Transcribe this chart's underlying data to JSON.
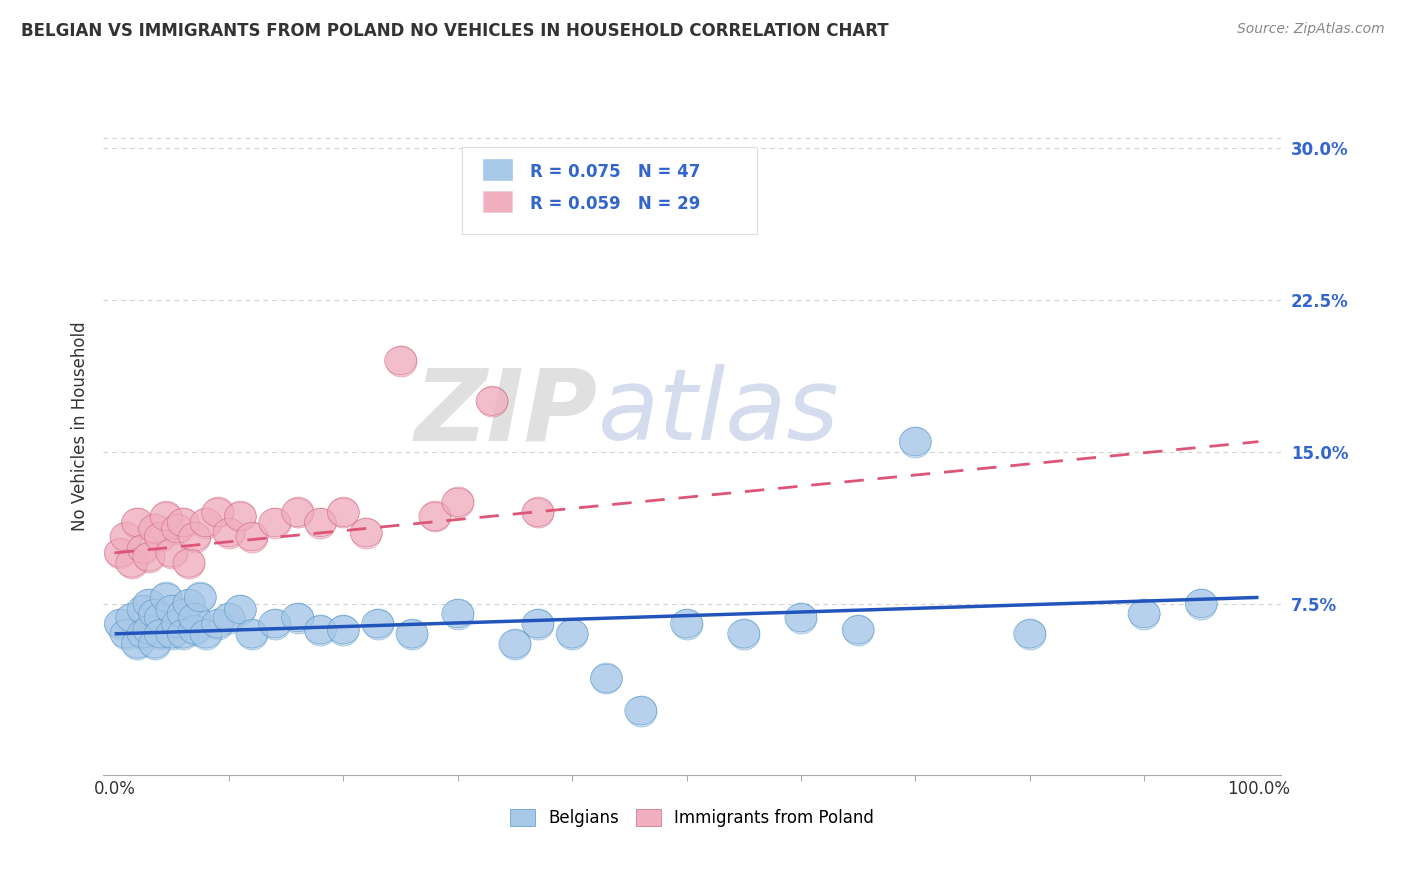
{
  "title": "BELGIAN VS IMMIGRANTS FROM POLAND NO VEHICLES IN HOUSEHOLD CORRELATION CHART",
  "source": "Source: ZipAtlas.com",
  "ylabel": "No Vehicles in Household",
  "watermark_zip": "ZIP",
  "watermark_atlas": "atlas",
  "xlim": [
    -0.01,
    1.02
  ],
  "ylim": [
    -0.01,
    0.335
  ],
  "ytick_right_labels": [
    "30.0%",
    "22.5%",
    "15.0%",
    "7.5%"
  ],
  "ytick_right_values": [
    0.3,
    0.225,
    0.15,
    0.075
  ],
  "color_blue": "#a8c8e8",
  "color_pink": "#f0b0c0",
  "color_blue_line": "#2255bb",
  "color_pink_line": "#dd5577",
  "color_legend_text": "#3366cc",
  "background_color": "#ffffff",
  "grid_color": "#cccccc",
  "bel_trend_x0": 0.0,
  "bel_trend_x1": 1.0,
  "bel_trend_y0": 0.06,
  "bel_trend_y1": 0.078,
  "pol_trend_x0": 0.0,
  "pol_trend_x1": 1.0,
  "pol_trend_y0": 0.1,
  "pol_trend_y1": 0.155,
  "belgians_x": [
    0.005,
    0.01,
    0.015,
    0.02,
    0.025,
    0.025,
    0.03,
    0.03,
    0.035,
    0.035,
    0.04,
    0.04,
    0.045,
    0.05,
    0.05,
    0.055,
    0.06,
    0.06,
    0.065,
    0.07,
    0.07,
    0.075,
    0.08,
    0.09,
    0.1,
    0.11,
    0.12,
    0.14,
    0.16,
    0.18,
    0.2,
    0.23,
    0.26,
    0.3,
    0.35,
    0.37,
    0.4,
    0.43,
    0.46,
    0.5,
    0.55,
    0.6,
    0.65,
    0.7,
    0.8,
    0.9,
    0.95
  ],
  "belgians_y": [
    0.065,
    0.06,
    0.068,
    0.055,
    0.072,
    0.06,
    0.075,
    0.062,
    0.055,
    0.07,
    0.068,
    0.06,
    0.078,
    0.06,
    0.072,
    0.065,
    0.07,
    0.06,
    0.075,
    0.062,
    0.068,
    0.078,
    0.06,
    0.065,
    0.068,
    0.072,
    0.06,
    0.065,
    0.068,
    0.062,
    0.062,
    0.065,
    0.06,
    0.07,
    0.055,
    0.065,
    0.06,
    0.038,
    0.022,
    0.065,
    0.06,
    0.068,
    0.062,
    0.155,
    0.06,
    0.07,
    0.075
  ],
  "poland_x": [
    0.005,
    0.01,
    0.015,
    0.02,
    0.025,
    0.03,
    0.035,
    0.04,
    0.045,
    0.05,
    0.055,
    0.06,
    0.065,
    0.07,
    0.08,
    0.09,
    0.1,
    0.11,
    0.12,
    0.14,
    0.16,
    0.18,
    0.2,
    0.22,
    0.25,
    0.28,
    0.3,
    0.33,
    0.37
  ],
  "poland_y": [
    0.1,
    0.108,
    0.095,
    0.115,
    0.102,
    0.098,
    0.112,
    0.108,
    0.118,
    0.1,
    0.112,
    0.115,
    0.095,
    0.108,
    0.115,
    0.12,
    0.11,
    0.118,
    0.108,
    0.115,
    0.12,
    0.115,
    0.12,
    0.11,
    0.195,
    0.118,
    0.125,
    0.175,
    0.12
  ]
}
